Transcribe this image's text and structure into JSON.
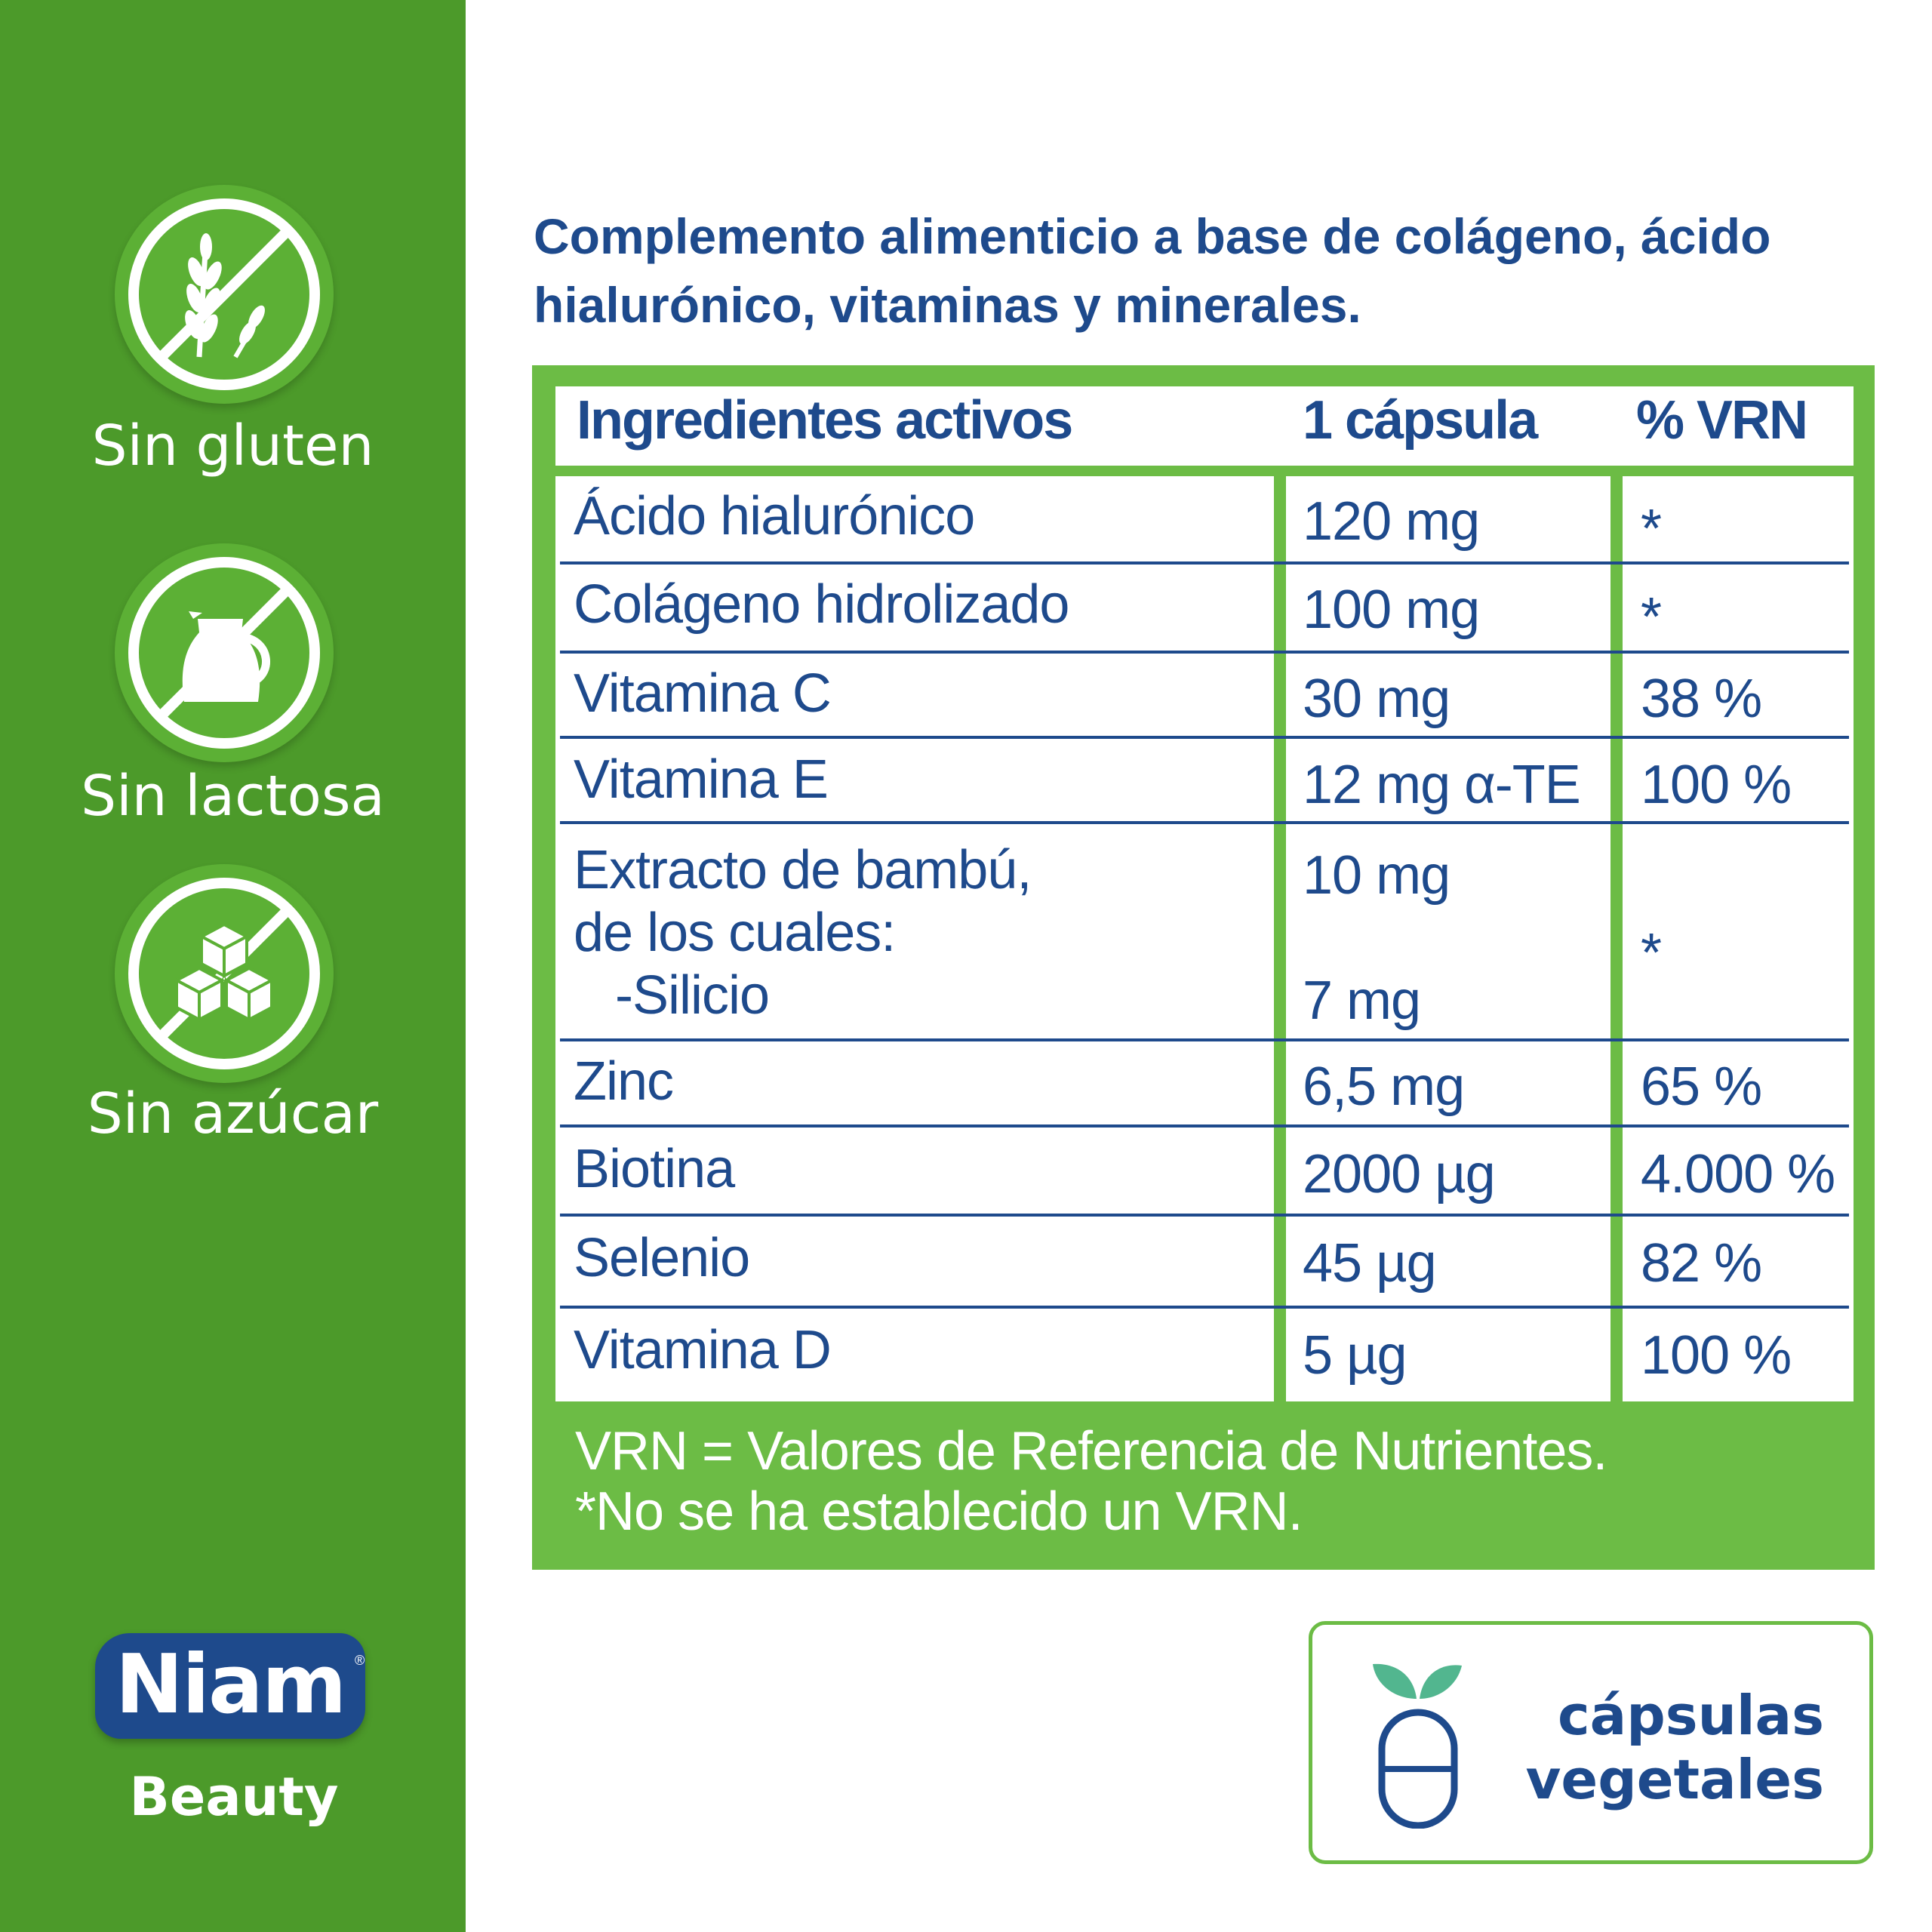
{
  "colors": {
    "sidebar_green": "#4c9a2a",
    "badge_green": "#5cb035",
    "panel_green": "#6cbc45",
    "navy": "#1e4a8c",
    "white": "#ffffff"
  },
  "badges": [
    {
      "icon": "wheat-crossed-icon",
      "label": "Sin gluten"
    },
    {
      "icon": "milk-jug-crossed-icon",
      "label": "Sin lactosa"
    },
    {
      "icon": "sugar-cubes-crossed-icon",
      "label": "Sin azúcar"
    }
  ],
  "brand": {
    "name": "Niam",
    "reg_mark": "®",
    "line": "Beauty"
  },
  "headline": {
    "line1": "Complemento alimenticio a base de colágeno, ácido",
    "line2": "hialurónico, vitaminas y minerales."
  },
  "table": {
    "headers": [
      "Ingredientes activos",
      "1 cápsula",
      "% VRN"
    ],
    "rows": [
      {
        "ingredient": "Ácido hialurónico",
        "amount": "120 mg",
        "vrn": "*"
      },
      {
        "ingredient": "Colágeno hidrolizado",
        "amount": "100 mg",
        "vrn": "*"
      },
      {
        "ingredient": "Vitamina C",
        "amount": "30 mg",
        "vrn": "38 %"
      },
      {
        "ingredient": "Vitamina E",
        "amount": "12 mg α-TE",
        "vrn": "100 %"
      },
      {
        "ingredient_lines": [
          "Extracto de bambú,",
          "de los cuales:",
          "-Silicio"
        ],
        "amount_lines": [
          "10 mg",
          "7 mg"
        ],
        "vrn": "*"
      },
      {
        "ingredient": "Zinc",
        "amount": "6,5 mg",
        "vrn": "65 %"
      },
      {
        "ingredient": "Biotina",
        "amount": "2000 µg",
        "vrn": "4.000 %"
      },
      {
        "ingredient": "Selenio",
        "amount": "45 µg",
        "vrn": "82 %"
      },
      {
        "ingredient": "Vitamina D",
        "amount": "5 µg",
        "vrn": "100 %"
      }
    ],
    "footnotes": [
      "VRN = Valores de Referencia de Nutrientes.",
      "*No se ha establecido un VRN."
    ]
  },
  "veg_badge": {
    "icon": "vegetable-capsule-icon",
    "line1": "cápsulas",
    "line2": "vegetales"
  }
}
